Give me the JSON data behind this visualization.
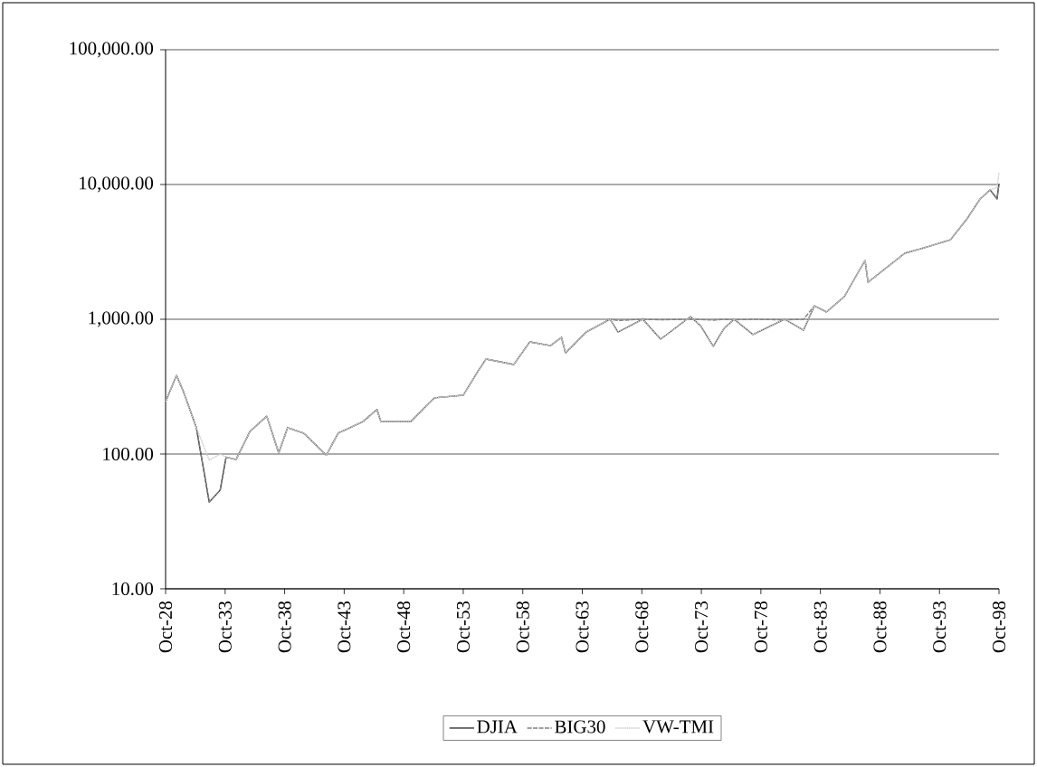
{
  "chart_data": {
    "type": "line",
    "log": "y",
    "grid": "y",
    "legend": "bottom",
    "x": [
      "1928-10",
      "1929-09",
      "1930-04",
      "1931-05",
      "1932-06",
      "1933-05",
      "1933-11",
      "1934-09",
      "1935-11",
      "1937-04",
      "1938-04",
      "1939-01",
      "1940-05",
      "1942-04",
      "1943-04",
      "1945-05",
      "1946-07",
      "1946-11",
      "1949-05",
      "1951-01",
      "1951-05",
      "1953-10",
      "1955-01",
      "1955-09",
      "1958-01",
      "1959-05",
      "1961-02",
      "1962-01",
      "1962-05",
      "1964-02",
      "1966-02",
      "1966-10",
      "1968-11",
      "1970-05",
      "1972-11",
      "1973-09",
      "1974-10",
      "1975-09",
      "1976-07",
      "1978-02",
      "1980-10",
      "1982-05",
      "1983-04",
      "1984-04",
      "1985-10",
      "1987-07",
      "1987-10",
      "1990-11",
      "1993-01",
      "1994-09",
      "1996-01",
      "1997-03",
      "1998-01",
      "1998-08",
      "1998-10"
    ],
    "series": [
      {
        "name": "DJIA",
        "color": "#333333",
        "line_style": "solid",
        "values": [
          245,
          384,
          290,
          157,
          44,
          54,
          95,
          91,
          147,
          191,
          102,
          157,
          143,
          98,
          143,
          174,
          214,
          174,
          174,
          245,
          261,
          273,
          414,
          507,
          462,
          679,
          638,
          734,
          563,
          805,
          1000,
          805,
          1000,
          711,
          1047,
          898,
          630,
          857,
          1000,
          770,
          1000,
          830,
          1260,
          1132,
          1471,
          2730,
          1884,
          3090,
          3500,
          3890,
          5470,
          7820,
          9120,
          7820,
          10150
        ]
      },
      {
        "name": "BIG30",
        "color": "#808080",
        "line_style": "dashed",
        "values": [
          245,
          384,
          290,
          157,
          44,
          54,
          95,
          91,
          147,
          191,
          102,
          157,
          143,
          98,
          143,
          174,
          214,
          174,
          174,
          245,
          261,
          273,
          414,
          507,
          462,
          679,
          638,
          734,
          563,
          805,
          1000,
          980,
          1000,
          990,
          1000,
          995,
          985,
          1000,
          990,
          1000,
          990,
          1000,
          1260,
          1132,
          1471,
          2730,
          1884,
          3090,
          3500,
          3890,
          5470,
          7820,
          9120,
          7820,
          10150
        ]
      },
      {
        "name": "VW-TMI",
        "color": "#d0d0d0",
        "line_style": "dotted",
        "values": [
          245,
          384,
          290,
          157,
          90,
          100,
          95,
          91,
          147,
          191,
          102,
          157,
          143,
          98,
          143,
          174,
          214,
          174,
          174,
          245,
          261,
          273,
          414,
          507,
          462,
          679,
          638,
          734,
          563,
          805,
          1000,
          805,
          1000,
          711,
          1047,
          898,
          630,
          857,
          1000,
          770,
          1000,
          830,
          1260,
          1132,
          1471,
          2730,
          1884,
          3090,
          3500,
          3890,
          5470,
          7820,
          9120,
          9500,
          12300
        ]
      }
    ],
    "xlim": [
      "1928-10",
      "1998-10"
    ],
    "xticks": [
      {
        "value": "1928-10",
        "label": "Oct-28"
      },
      {
        "value": "1933-10",
        "label": "Oct-33"
      },
      {
        "value": "1938-10",
        "label": "Oct-38"
      },
      {
        "value": "1943-10",
        "label": "Oct-43"
      },
      {
        "value": "1948-10",
        "label": "Oct-48"
      },
      {
        "value": "1953-10",
        "label": "Oct-53"
      },
      {
        "value": "1958-10",
        "label": "Oct-58"
      },
      {
        "value": "1963-10",
        "label": "Oct-63"
      },
      {
        "value": "1968-10",
        "label": "Oct-68"
      },
      {
        "value": "1973-10",
        "label": "Oct-73"
      },
      {
        "value": "1978-10",
        "label": "Oct-78"
      },
      {
        "value": "1983-10",
        "label": "Oct-83"
      },
      {
        "value": "1988-10",
        "label": "Oct-88"
      },
      {
        "value": "1993-10",
        "label": "Oct-93"
      },
      {
        "value": "1998-10",
        "label": "Oct-98"
      }
    ],
    "ylim": [
      10,
      100000
    ],
    "yticks": [
      {
        "value": 10,
        "label": "10.00"
      },
      {
        "value": 100,
        "label": "100.00"
      },
      {
        "value": 1000,
        "label": "1,000.00"
      },
      {
        "value": 10000,
        "label": "10,000.00"
      },
      {
        "value": 100000,
        "label": "100,000.00"
      }
    ]
  }
}
